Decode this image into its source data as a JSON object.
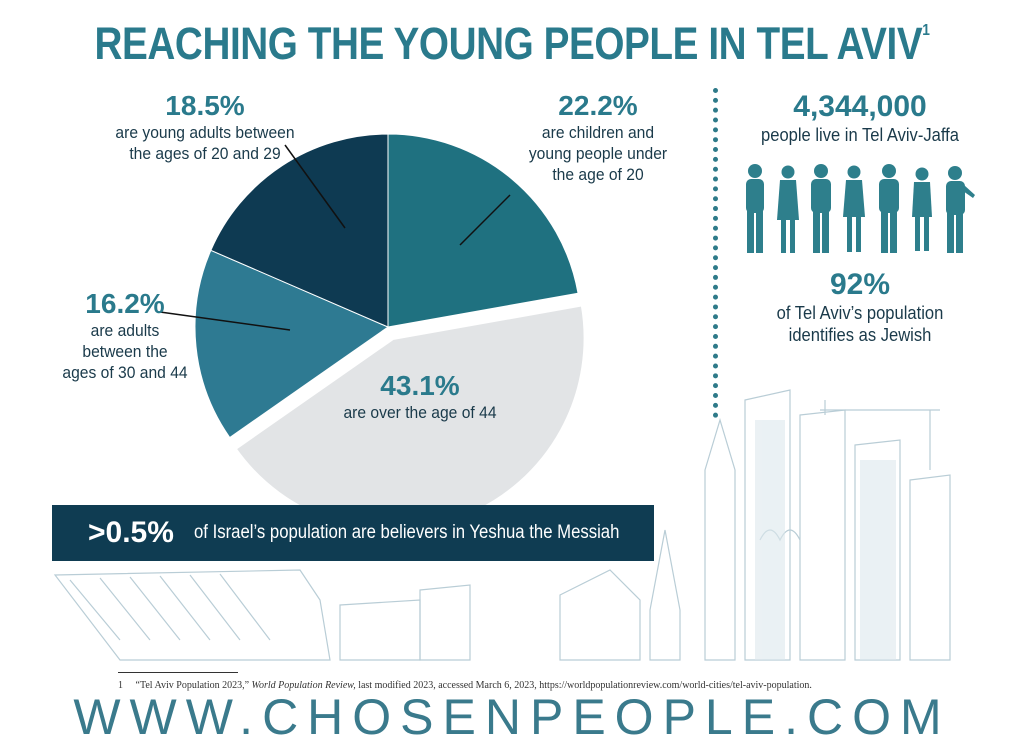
{
  "title": "REACHING THE YOUNG PEOPLE IN TEL AVIV",
  "title_footnote_mark": "1",
  "chart_data": {
    "type": "pie",
    "slices": [
      {
        "value": 22.2,
        "label": "22.2%",
        "text": "are children and young people under the age of 20",
        "color": "#1f7180"
      },
      {
        "value": 43.1,
        "label": "43.1%",
        "text": "are over the age of 44",
        "color": "#e2e4e6",
        "exploded": true
      },
      {
        "value": 16.2,
        "label": "16.2%",
        "text": "are adults between the ages of 30 and 44",
        "color": "#2e7a92"
      },
      {
        "value": 18.5,
        "label": "18.5%",
        "text": "are young adults between the ages of 20 and 29",
        "color": "#0e3a52"
      }
    ]
  },
  "labels": {
    "s222": {
      "pct": "22.2%",
      "l1": "are children and",
      "l2": "young people under",
      "l3": "the age of 20"
    },
    "s185": {
      "pct": "18.5%",
      "l1": "are young adults between",
      "l2": "the ages of 20 and 29"
    },
    "s162": {
      "pct": "16.2%",
      "l1": "are adults",
      "l2": "between the",
      "l3": "ages of 30 and 44"
    },
    "s431": {
      "pct": "43.1%",
      "l1": "are over the age of 44"
    }
  },
  "stats": {
    "population": {
      "value": "4,344,000",
      "text": "people live in Tel Aviv-Jaffa"
    },
    "jewish": {
      "value": "92%",
      "l1": "of Tel Aviv’s population",
      "l2": "identifies as Jewish"
    }
  },
  "banner": {
    "pct": ">0.5%",
    "text": "of Israel’s population are believers in Yeshua the Messiah"
  },
  "footnote": {
    "num": "1",
    "pre": "“Tel Aviv Population 2023,”",
    "source": "World Population Review,",
    "post": "last modified 2023, accessed March 6, 2023, https://worldpopulationreview.com/world-cities/tel-aviv-population."
  },
  "website": "WWW.CHOSENPEOPLE.COM",
  "colors": {
    "accent": "#2a7a8c",
    "dark": "#0f3c52",
    "text": "#1a3a4a"
  },
  "icons": [
    "people-silhouettes-icon",
    "city-skyline-illustration"
  ]
}
